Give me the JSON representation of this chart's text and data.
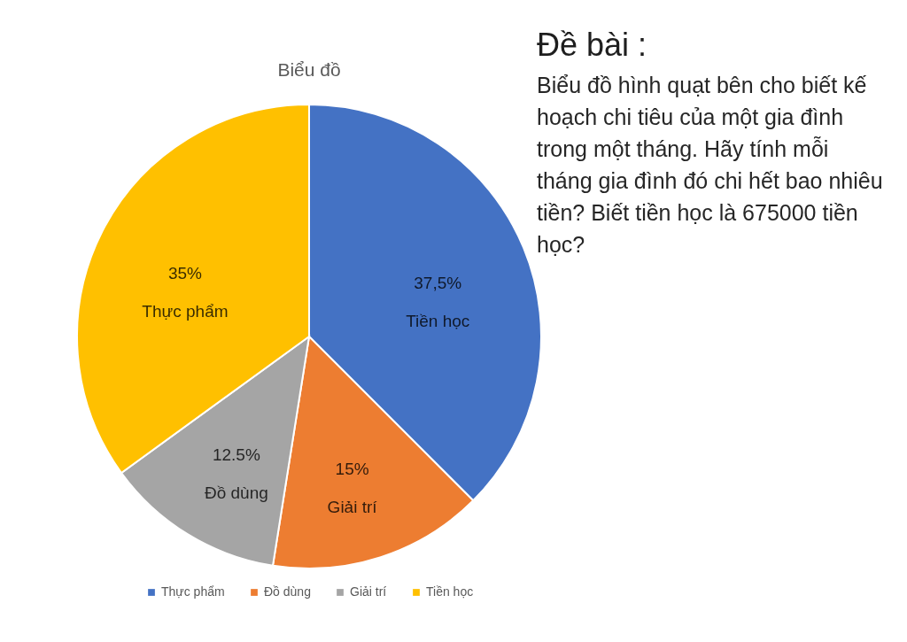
{
  "chart_data": {
    "type": "pie",
    "title": "Biểu đồ",
    "categories": [
      "Thực phẩm",
      "Đồ dùng",
      "Giải trí",
      "Tiền học"
    ],
    "values": [
      37.5,
      15,
      12.5,
      35
    ],
    "colors": [
      "#4472c4",
      "#ed7d31",
      "#a5a5a5",
      "#ffc000"
    ],
    "value_labels": [
      "37,5%\nTiền học",
      "15%\nGiải trí",
      "12.5%\nĐồ dùng",
      "35%\nThực phẩm"
    ],
    "legend": "bottom",
    "annotations": [
      "Đề bài :",
      "Biểu đồ hình quạt bên cho biết kế hoạch chi tiêu của một gia đình trong một tháng. Hãy tính mỗi tháng gia đình đó chi hết bao nhiêu tiền? Biết tiền học là 675000 tiền học?"
    ]
  }
}
